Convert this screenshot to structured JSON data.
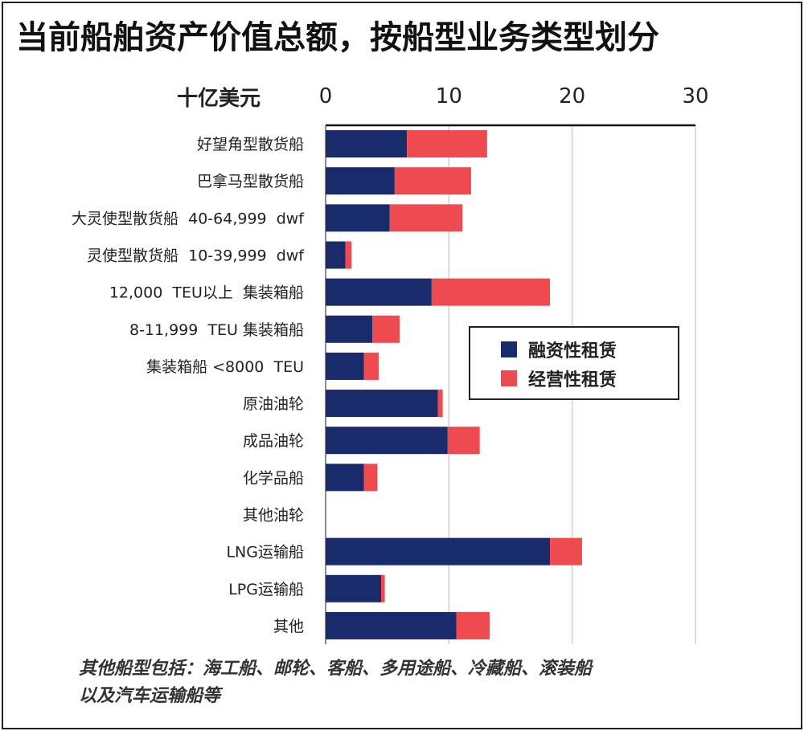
{
  "title": "当前船舶资产价值总额，按船型业务类型划分",
  "footnote_lines": [
    "其他船型包括：海工船、邮轮、客船、多用途船、冷藏船、滚装船",
    "以及汽车运输船等"
  ],
  "colors": {
    "finance": "#1a2b6b",
    "operating": "#ef4a50"
  },
  "chart_data": {
    "type": "bar",
    "orientation": "horizontal",
    "stacked": true,
    "x_unit_label": "十亿美元",
    "xlim": [
      0,
      30
    ],
    "xticks": [
      0,
      10,
      20,
      30
    ],
    "xtick_labels": [
      "0",
      "10",
      "20",
      "30"
    ],
    "grid": "vertical",
    "legend_position": "right-middle",
    "categories": [
      "好望角型散货船",
      "巴拿马型散货船",
      "大灵使型散货船  40-64,999  dwf",
      "灵使型散货船  10-39,999  dwf",
      "12,000  TEU以上  集装箱船",
      "8-11,999  TEU 集装箱船",
      "集装箱船 <8000  TEU",
      "原油油轮",
      "成品油轮",
      "化学品船",
      "其他油轮",
      "LNG运输船",
      "LPG运输船",
      "其他"
    ],
    "series": [
      {
        "name": "融资性租赁",
        "values": [
          6.6,
          5.6,
          5.2,
          1.6,
          8.6,
          3.8,
          3.1,
          9.1,
          9.9,
          3.1,
          0.0,
          18.2,
          4.5,
          10.6
        ]
      },
      {
        "name": "经营性租赁",
        "values": [
          6.5,
          6.2,
          5.9,
          0.5,
          9.6,
          2.2,
          1.2,
          0.4,
          2.6,
          1.1,
          0.0,
          2.6,
          0.3,
          2.7
        ]
      }
    ]
  }
}
